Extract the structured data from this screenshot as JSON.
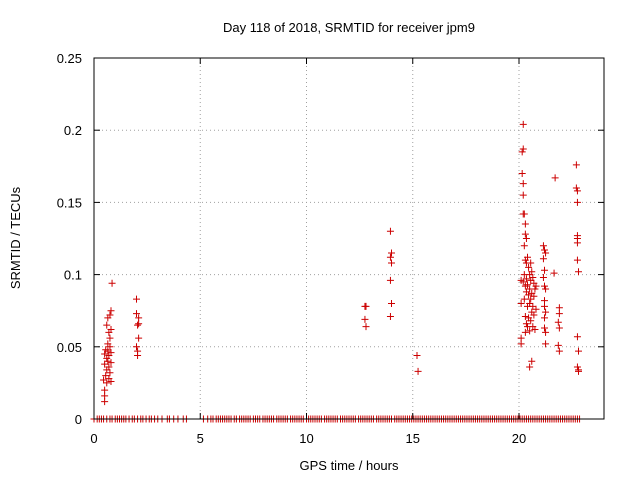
{
  "chart_data": {
    "type": "scatter",
    "title": "Day 118 of 2018, SRMTID for receiver jpm9",
    "xlabel": "GPS time / hours",
    "ylabel": "SRMTID / TECUs",
    "xlim": [
      0,
      24
    ],
    "ylim": [
      0,
      0.25
    ],
    "x_ticks": [
      0,
      5,
      10,
      15,
      20
    ],
    "x_tick_labels": [
      "0",
      "5",
      "10",
      "15",
      "20"
    ],
    "y_ticks": [
      0,
      0.05,
      0.1,
      0.15,
      0.2,
      0.25
    ],
    "y_tick_labels": [
      "0",
      "0.05",
      "0.1",
      "0.15",
      "0.2",
      "0.25"
    ],
    "grid": true,
    "marker": "+",
    "series": [
      {
        "name": "SRMTID",
        "color": "#cc0000",
        "points": [
          [
            0.45,
            0.027
          ],
          [
            0.5,
            0.038
          ],
          [
            0.5,
            0.045
          ],
          [
            0.5,
            0.016
          ],
          [
            0.5,
            0.012
          ],
          [
            0.5,
            0.02
          ],
          [
            0.55,
            0.03
          ],
          [
            0.55,
            0.048
          ],
          [
            0.6,
            0.034
          ],
          [
            0.6,
            0.042
          ],
          [
            0.6,
            0.025
          ],
          [
            0.6,
            0.065
          ],
          [
            0.65,
            0.04
          ],
          [
            0.65,
            0.047
          ],
          [
            0.65,
            0.052
          ],
          [
            0.65,
            0.07
          ],
          [
            0.7,
            0.028
          ],
          [
            0.7,
            0.036
          ],
          [
            0.7,
            0.044
          ],
          [
            0.7,
            0.06
          ],
          [
            0.75,
            0.032
          ],
          [
            0.75,
            0.05
          ],
          [
            0.75,
            0.072
          ],
          [
            0.75,
            0.056
          ],
          [
            0.8,
            0.046
          ],
          [
            0.8,
            0.062
          ],
          [
            0.8,
            0.075
          ],
          [
            0.8,
            0.026
          ],
          [
            0.85,
            0.094
          ],
          [
            0.8,
            0.039
          ],
          [
            2.0,
            0.083
          ],
          [
            2.0,
            0.073
          ],
          [
            2.05,
            0.065
          ],
          [
            2.05,
            0.047
          ],
          [
            2.05,
            0.044
          ],
          [
            2.1,
            0.056
          ],
          [
            2.1,
            0.066
          ],
          [
            2.1,
            0.07
          ],
          [
            2.0,
            0.05
          ],
          [
            12.75,
            0.078
          ],
          [
            12.8,
            0.078
          ],
          [
            12.75,
            0.069
          ],
          [
            12.8,
            0.064
          ],
          [
            13.95,
            0.13
          ],
          [
            13.95,
            0.112
          ],
          [
            14.0,
            0.108
          ],
          [
            13.95,
            0.096
          ],
          [
            14.0,
            0.08
          ],
          [
            13.95,
            0.071
          ],
          [
            14.0,
            0.115
          ],
          [
            15.2,
            0.044
          ],
          [
            15.25,
            0.033
          ],
          [
            20.1,
            0.096
          ],
          [
            20.1,
            0.08
          ],
          [
            20.1,
            0.056
          ],
          [
            20.1,
            0.052
          ],
          [
            20.15,
            0.185
          ],
          [
            20.15,
            0.17
          ],
          [
            20.2,
            0.204
          ],
          [
            20.2,
            0.187
          ],
          [
            20.2,
            0.163
          ],
          [
            20.2,
            0.155
          ],
          [
            20.2,
            0.142
          ],
          [
            20.2,
            0.095
          ],
          [
            20.25,
            0.142
          ],
          [
            20.25,
            0.12
          ],
          [
            20.25,
            0.1
          ],
          [
            20.25,
            0.083
          ],
          [
            20.3,
            0.135
          ],
          [
            20.3,
            0.128
          ],
          [
            20.3,
            0.11
          ],
          [
            20.3,
            0.092
          ],
          [
            20.3,
            0.071
          ],
          [
            20.3,
            0.06
          ],
          [
            20.35,
            0.125
          ],
          [
            20.35,
            0.108
          ],
          [
            20.35,
            0.097
          ],
          [
            20.35,
            0.088
          ],
          [
            20.35,
            0.066
          ],
          [
            20.4,
            0.112
          ],
          [
            20.4,
            0.093
          ],
          [
            20.4,
            0.078
          ],
          [
            20.4,
            0.064
          ],
          [
            20.45,
            0.105
          ],
          [
            20.45,
            0.086
          ],
          [
            20.45,
            0.07
          ],
          [
            20.5,
            0.1
          ],
          [
            20.5,
            0.09
          ],
          [
            20.5,
            0.08
          ],
          [
            20.5,
            0.061
          ],
          [
            20.5,
            0.036
          ],
          [
            20.55,
            0.108
          ],
          [
            20.55,
            0.096
          ],
          [
            20.55,
            0.083
          ],
          [
            20.55,
            0.068
          ],
          [
            20.6,
            0.102
          ],
          [
            20.6,
            0.087
          ],
          [
            20.6,
            0.074
          ],
          [
            20.6,
            0.04
          ],
          [
            20.65,
            0.098
          ],
          [
            20.65,
            0.078
          ],
          [
            20.65,
            0.064
          ],
          [
            20.7,
            0.094
          ],
          [
            20.7,
            0.085
          ],
          [
            20.7,
            0.072
          ],
          [
            20.75,
            0.09
          ],
          [
            20.75,
            0.062
          ],
          [
            20.8,
            0.076
          ],
          [
            20.8,
            0.092
          ],
          [
            21.15,
            0.12
          ],
          [
            21.15,
            0.111
          ],
          [
            21.15,
            0.098
          ],
          [
            21.2,
            0.117
          ],
          [
            21.2,
            0.103
          ],
          [
            21.2,
            0.092
          ],
          [
            21.2,
            0.082
          ],
          [
            21.2,
            0.07
          ],
          [
            21.2,
            0.063
          ],
          [
            21.25,
            0.115
          ],
          [
            21.25,
            0.09
          ],
          [
            21.25,
            0.074
          ],
          [
            21.25,
            0.06
          ],
          [
            21.25,
            0.052
          ],
          [
            21.2,
            0.078
          ],
          [
            21.7,
            0.167
          ],
          [
            21.65,
            0.101
          ],
          [
            21.9,
            0.077
          ],
          [
            21.85,
            0.067
          ],
          [
            21.9,
            0.063
          ],
          [
            21.85,
            0.051
          ],
          [
            21.9,
            0.047
          ],
          [
            21.9,
            0.073
          ],
          [
            22.7,
            0.176
          ],
          [
            22.7,
            0.16
          ],
          [
            22.75,
            0.15
          ],
          [
            22.75,
            0.127
          ],
          [
            22.75,
            0.125
          ],
          [
            22.75,
            0.122
          ],
          [
            22.75,
            0.11
          ],
          [
            22.8,
            0.102
          ],
          [
            22.75,
            0.158
          ],
          [
            22.75,
            0.057
          ],
          [
            22.8,
            0.047
          ],
          [
            22.75,
            0.036
          ],
          [
            22.8,
            0.034
          ],
          [
            22.8,
            0.033
          ]
        ],
        "zero_baseline_x": [
          0.0,
          0.15,
          0.25,
          0.35,
          0.45,
          0.6,
          0.75,
          0.85,
          1.0,
          1.1,
          1.2,
          1.3,
          1.4,
          1.5,
          1.65,
          1.8,
          1.9,
          2.05,
          2.2,
          2.3,
          2.45,
          2.6,
          2.7,
          2.85,
          3.0,
          3.2,
          3.45,
          3.55,
          3.75,
          3.95,
          4.2,
          4.35,
          5.15,
          5.35,
          5.5,
          5.6,
          5.75,
          5.85,
          5.95,
          6.05,
          6.15,
          6.25,
          6.35,
          6.45,
          6.6,
          6.7,
          6.85,
          6.95,
          7.05,
          7.15,
          7.25,
          7.35,
          7.5,
          7.6,
          7.7,
          7.8,
          7.95,
          8.05,
          8.15,
          8.25,
          8.35,
          8.45,
          8.6,
          8.7,
          8.8,
          8.9,
          9.0,
          9.1,
          9.25,
          9.35,
          9.45,
          9.55,
          9.65,
          9.75,
          9.85,
          10.0,
          10.1,
          10.2,
          10.3,
          10.4,
          10.5,
          10.6,
          10.7,
          10.85,
          10.95,
          11.05,
          11.15,
          11.25,
          11.35,
          11.45,
          11.6,
          11.7,
          11.8,
          11.9,
          12.0,
          12.1,
          12.2,
          12.3,
          12.45,
          12.55,
          12.65,
          12.75,
          12.85,
          12.95,
          13.05,
          13.15,
          13.3,
          13.4,
          13.5,
          13.6,
          13.7,
          13.8,
          13.9,
          14.0,
          14.15,
          14.25,
          14.35,
          14.45,
          14.55,
          14.65,
          14.75,
          14.85,
          14.95,
          15.05,
          15.15,
          15.25,
          15.35,
          15.45,
          15.55,
          15.65,
          15.75,
          15.85,
          15.95,
          16.05,
          16.15,
          16.25,
          16.35,
          16.45,
          16.55,
          16.65,
          16.75,
          16.85,
          16.95,
          17.05,
          17.15,
          17.25,
          17.35,
          17.45,
          17.55,
          17.65,
          17.75,
          17.85,
          17.95,
          18.05,
          18.15,
          18.25,
          18.35,
          18.45,
          18.55,
          18.65,
          18.75,
          18.85,
          18.95,
          19.05,
          19.15,
          19.25,
          19.35,
          19.45,
          19.55,
          19.65,
          19.75,
          19.85,
          19.95,
          20.05,
          20.15,
          20.25,
          20.35,
          20.45,
          20.55,
          20.65,
          20.75,
          20.85,
          20.95,
          21.05,
          21.15,
          21.25,
          21.35,
          21.45,
          21.55,
          21.65,
          21.75,
          21.85,
          21.95,
          22.05,
          22.15,
          22.25,
          22.35,
          22.45,
          22.55,
          22.65,
          22.75,
          22.85
        ]
      }
    ]
  }
}
